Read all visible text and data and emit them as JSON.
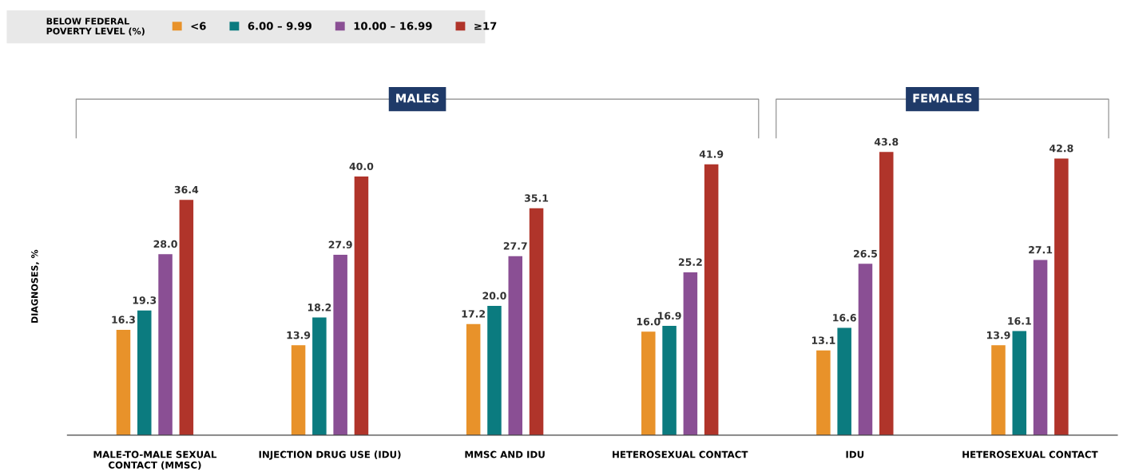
{
  "chart_data": {
    "type": "bar",
    "ylabel": "DIAGNOSES, %",
    "legend_title": "BELOW FEDERAL\nPOVERTY LEVEL (%)",
    "legend": "top left",
    "tick_labels": "x",
    "grid": false,
    "categories": [
      "MALE-TO-MALE SEXUAL\nCONTACT (MMSC)",
      "INJECTION DRUG USE (IDU)",
      "MMSC AND IDU",
      "HETEROSEXUAL CONTACT",
      "IDU",
      "HETEROSEXUAL CONTACT"
    ],
    "annotations": [
      "MALES",
      "FEMALES"
    ],
    "series": [
      {
        "name": "<6",
        "color": "#e8922a",
        "values": [
          16.3,
          13.9,
          17.2,
          16.0,
          13.1,
          13.9
        ],
        "value_labels": [
          "16.3",
          "13.9",
          "17.2",
          "16.0",
          "13.1",
          "13.9"
        ]
      },
      {
        "name": "6.00 – 9.99",
        "color": "#0b7b7f",
        "values": [
          19.3,
          18.2,
          20.0,
          16.9,
          16.6,
          16.1
        ],
        "value_labels": [
          "19.3",
          "18.2",
          "20.0",
          "16.9",
          "16.6",
          "16.1"
        ]
      },
      {
        "name": "10.00 – 16.99",
        "color": "#8a4f94",
        "values": [
          28.0,
          27.9,
          27.7,
          25.2,
          26.5,
          27.1
        ],
        "value_labels": [
          "28.0",
          "27.9",
          "27.7",
          "25.2",
          "26.5",
          "27.1"
        ]
      },
      {
        "name": "≥17",
        "color": "#b0342a",
        "values": [
          36.4,
          40.0,
          35.1,
          41.9,
          43.8,
          42.8
        ],
        "value_labels": [
          "36.4",
          "40.0",
          "35.1",
          "41.9",
          "43.8",
          "42.8"
        ]
      }
    ]
  }
}
